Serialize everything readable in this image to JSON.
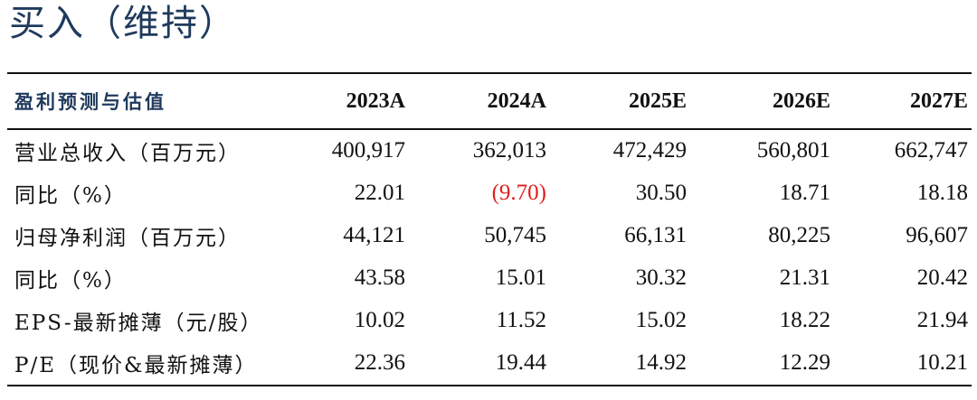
{
  "rating": "买入（维持）",
  "table": {
    "header": [
      "盈利预测与估值",
      "2023A",
      "2024A",
      "2025E",
      "2026E",
      "2027E"
    ],
    "rows": [
      {
        "label": "营业总收入（百万元）",
        "values": [
          "400,917",
          "362,013",
          "472,429",
          "560,801",
          "662,747"
        ]
      },
      {
        "label": "同比（%）",
        "values": [
          "22.01",
          "(9.70)",
          "30.50",
          "18.71",
          "18.18"
        ]
      },
      {
        "label": "归母净利润（百万元）",
        "values": [
          "44,121",
          "50,745",
          "66,131",
          "80,225",
          "96,607"
        ]
      },
      {
        "label": "同比（%）",
        "values": [
          "43.58",
          "15.01",
          "30.32",
          "21.31",
          "20.42"
        ]
      },
      {
        "label": "EPS-最新摊薄（元/股）",
        "values": [
          "10.02",
          "11.52",
          "15.02",
          "18.22",
          "21.94"
        ]
      },
      {
        "label": "P/E（现价&最新摊薄）",
        "values": [
          "22.36",
          "19.44",
          "14.92",
          "12.29",
          "10.21"
        ]
      }
    ],
    "negative_color": "#e01e1e",
    "header_color": "#1f3a5c"
  }
}
